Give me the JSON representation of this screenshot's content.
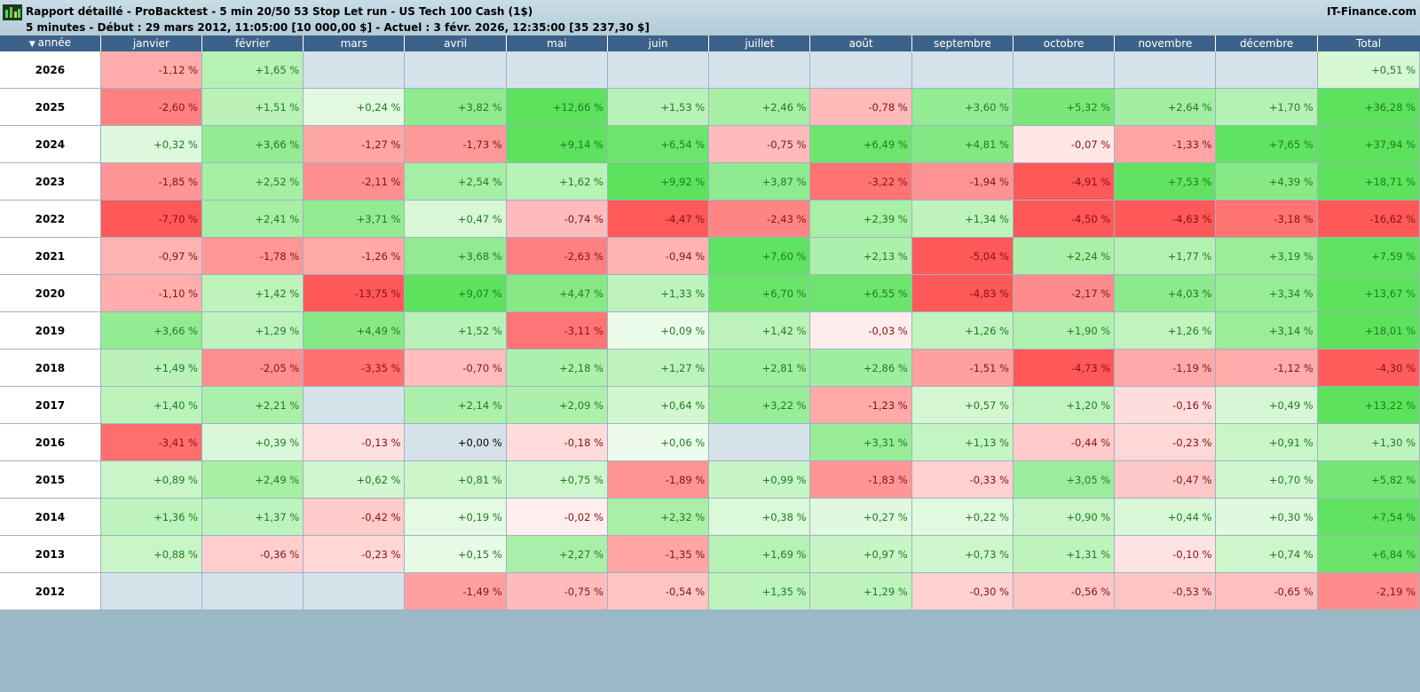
{
  "window": {
    "title": "Rapport détaillé - ProBacktest - 5 min 20/50 53 Stop Let run - US Tech 100 Cash (1$)",
    "subtitle": "5 minutes - Début : 29 mars 2012, 11:05:00 [10 000,00 $] - Actuel : 3 févr. 2026, 12:35:00 [35 237,30 $]",
    "brand": "IT-Finance.com",
    "logo_icon": "demo-chart-logo-icon"
  },
  "table": {
    "columns": [
      "année",
      "janvier",
      "février",
      "mars",
      "avril",
      "mai",
      "juin",
      "juillet",
      "août",
      "septembre",
      "octobre",
      "novembre",
      "décembre",
      "Total"
    ],
    "rows": [
      {
        "year": "2026",
        "cells": [
          "-1,12 %",
          "+1,65 %",
          "",
          "",
          "",
          "",
          "",
          "",
          "",
          "",
          "",
          "",
          "+0,51 %"
        ]
      },
      {
        "year": "2025",
        "cells": [
          "-2,60 %",
          "+1,51 %",
          "+0,24 %",
          "+3,82 %",
          "+12,66 %",
          "+1,53 %",
          "+2,46 %",
          "-0,78 %",
          "+3,60 %",
          "+5,32 %",
          "+2,64 %",
          "+1,70 %",
          "+36,28 %"
        ]
      },
      {
        "year": "2024",
        "cells": [
          "+0,32 %",
          "+3,66 %",
          "-1,27 %",
          "-1,73 %",
          "+9,14 %",
          "+6,54 %",
          "-0,75 %",
          "+6,49 %",
          "+4,81 %",
          "-0,07 %",
          "-1,33 %",
          "+7,65 %",
          "+37,94 %"
        ]
      },
      {
        "year": "2023",
        "cells": [
          "-1,85 %",
          "+2,52 %",
          "-2,11 %",
          "+2,54 %",
          "+1,62 %",
          "+9,92 %",
          "+3,87 %",
          "-3,22 %",
          "-1,94 %",
          "-4,91 %",
          "+7,53 %",
          "+4,39 %",
          "+18,71 %"
        ]
      },
      {
        "year": "2022",
        "cells": [
          "-7,70 %",
          "+2,41 %",
          "+3,71 %",
          "+0,47 %",
          "-0,74 %",
          "-4,47 %",
          "-2,43 %",
          "+2,39 %",
          "+1,34 %",
          "-4,50 %",
          "-4,63 %",
          "-3,18 %",
          "-16,62 %"
        ]
      },
      {
        "year": "2021",
        "cells": [
          "-0,97 %",
          "-1,78 %",
          "-1,26 %",
          "+3,68 %",
          "-2,63 %",
          "-0,94 %",
          "+7,60 %",
          "+2,13 %",
          "-5,04 %",
          "+2,24 %",
          "+1,77 %",
          "+3,19 %",
          "+7,59 %"
        ]
      },
      {
        "year": "2020",
        "cells": [
          "-1,10 %",
          "+1,42 %",
          "-13,75 %",
          "+9,07 %",
          "+4,47 %",
          "+1,33 %",
          "+6,70 %",
          "+6,55 %",
          "-4,83 %",
          "-2,17 %",
          "+4,03 %",
          "+3,34 %",
          "+13,67 %"
        ]
      },
      {
        "year": "2019",
        "cells": [
          "+3,66 %",
          "+1,29 %",
          "+4,49 %",
          "+1,52 %",
          "-3,11 %",
          "+0,09 %",
          "+1,42 %",
          "-0,03 %",
          "+1,26 %",
          "+1,90 %",
          "+1,26 %",
          "+3,14 %",
          "+18,01 %"
        ]
      },
      {
        "year": "2018",
        "cells": [
          "+1,49 %",
          "-2,05 %",
          "-3,35 %",
          "-0,70 %",
          "+2,18 %",
          "+1,27 %",
          "+2,81 %",
          "+2,86 %",
          "-1,51 %",
          "-4,73 %",
          "-1,19 %",
          "-1,12 %",
          "-4,30 %"
        ]
      },
      {
        "year": "2017",
        "cells": [
          "+1,40 %",
          "+2,21 %",
          "",
          "+2,14 %",
          "+2,09 %",
          "+0,64 %",
          "+3,22 %",
          "-1,23 %",
          "+0,57 %",
          "+1,20 %",
          "-0,16 %",
          "+0,49 %",
          "+13,22 %"
        ]
      },
      {
        "year": "2016",
        "cells": [
          "-3,41 %",
          "+0,39 %",
          "-0,13 %",
          "+0,00 %",
          "-0,18 %",
          "+0,06 %",
          "",
          "+3,31 %",
          "+1,13 %",
          "-0,44 %",
          "-0,23 %",
          "+0,91 %",
          "+1,30 %"
        ]
      },
      {
        "year": "2015",
        "cells": [
          "+0,89 %",
          "+2,49 %",
          "+0,62 %",
          "+0,81 %",
          "+0,75 %",
          "-1,89 %",
          "+0,99 %",
          "-1,83 %",
          "-0,33 %",
          "+3,05 %",
          "-0,47 %",
          "+0,70 %",
          "+5,82 %"
        ]
      },
      {
        "year": "2014",
        "cells": [
          "+1,36 %",
          "+1,37 %",
          "-0,42 %",
          "+0,19 %",
          "-0,02 %",
          "+2,32 %",
          "+0,38 %",
          "+0,27 %",
          "+0,22 %",
          "+0,90 %",
          "+0,44 %",
          "+0,30 %",
          "+7,54 %"
        ]
      },
      {
        "year": "2013",
        "cells": [
          "+0,88 %",
          "-0,36 %",
          "-0,23 %",
          "+0,15 %",
          "+2,27 %",
          "-1,35 %",
          "+1,69 %",
          "+0,97 %",
          "+0,73 %",
          "+1,31 %",
          "-0,10 %",
          "+0,74 %",
          "+6,84 %"
        ]
      },
      {
        "year": "2012",
        "cells": [
          "",
          "",
          "",
          "-1,49 %",
          "-0,75 %",
          "-0,54 %",
          "+1,35 %",
          "+1,29 %",
          "-0,30 %",
          "-0,56 %",
          "-0,53 %",
          "-0,65 %",
          "-2,19 %"
        ]
      }
    ]
  },
  "colors": {
    "header_bg": "#3d6289",
    "positive_text": "#1e7d1e",
    "negative_text": "#8b1010",
    "empty_cell": "#d6e2ea",
    "background": "#9ab8c6"
  }
}
